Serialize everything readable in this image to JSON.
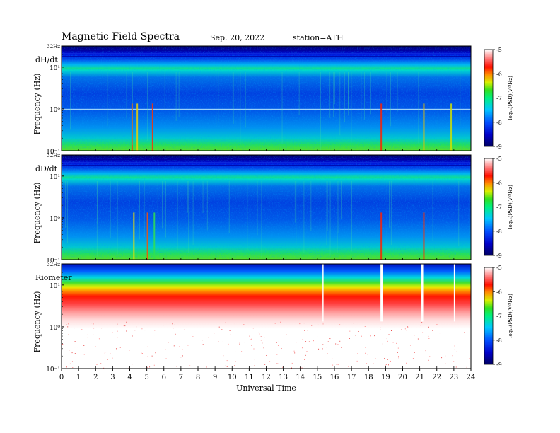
{
  "header": {
    "title": "Magnetic  Field  Spectra",
    "date": "Sep. 20, 2022",
    "station": "station=ATH"
  },
  "chart_data": [
    {
      "type": "heatmap",
      "panel_label": "dH/dt",
      "ylabel": "Frequency  (Hz)",
      "y_scale": "log",
      "yticks": [
        "32Hz",
        "10¹",
        "10⁰",
        "10⁻¹"
      ],
      "x_range": [
        0,
        24
      ],
      "colorbar": {
        "label": "log₁₀(PSD)(V²/Hz)",
        "ticks": [
          "-5",
          "-6",
          "-7",
          "-8",
          "-9"
        ],
        "range": [
          -9,
          -5
        ]
      }
    },
    {
      "type": "heatmap",
      "panel_label": "dD/dt",
      "ylabel": "Frequency  (Hz)",
      "y_scale": "log",
      "yticks": [
        "32Hz",
        "10¹",
        "10⁰",
        "10⁻¹"
      ],
      "x_range": [
        0,
        24
      ],
      "colorbar": {
        "label": "log₁₀(PSD)(V²/Hz)",
        "ticks": [
          "-5",
          "-6",
          "-7",
          "-8",
          "-9"
        ],
        "range": [
          -9,
          -5
        ]
      }
    },
    {
      "type": "heatmap",
      "panel_label": "Riometer",
      "ylabel": "Frequency  (Hz)",
      "y_scale": "log",
      "yticks": [
        "32Hz",
        "10¹",
        "10⁰",
        "10⁻¹"
      ],
      "x_range": [
        0,
        24
      ],
      "colorbar": {
        "label": "log₁₀(PSD)(V²/Hz)",
        "ticks": [
          "-5",
          "-6",
          "-7",
          "-8",
          "-9"
        ],
        "range": [
          -9,
          -5
        ]
      }
    }
  ],
  "x_axis": {
    "label": "Universal Time",
    "ticks": [
      "0",
      "1",
      "2",
      "3",
      "4",
      "5",
      "6",
      "7",
      "8",
      "9",
      "10",
      "11",
      "12",
      "13",
      "14",
      "15",
      "16",
      "17",
      "18",
      "19",
      "20",
      "21",
      "22",
      "23",
      "24"
    ]
  }
}
